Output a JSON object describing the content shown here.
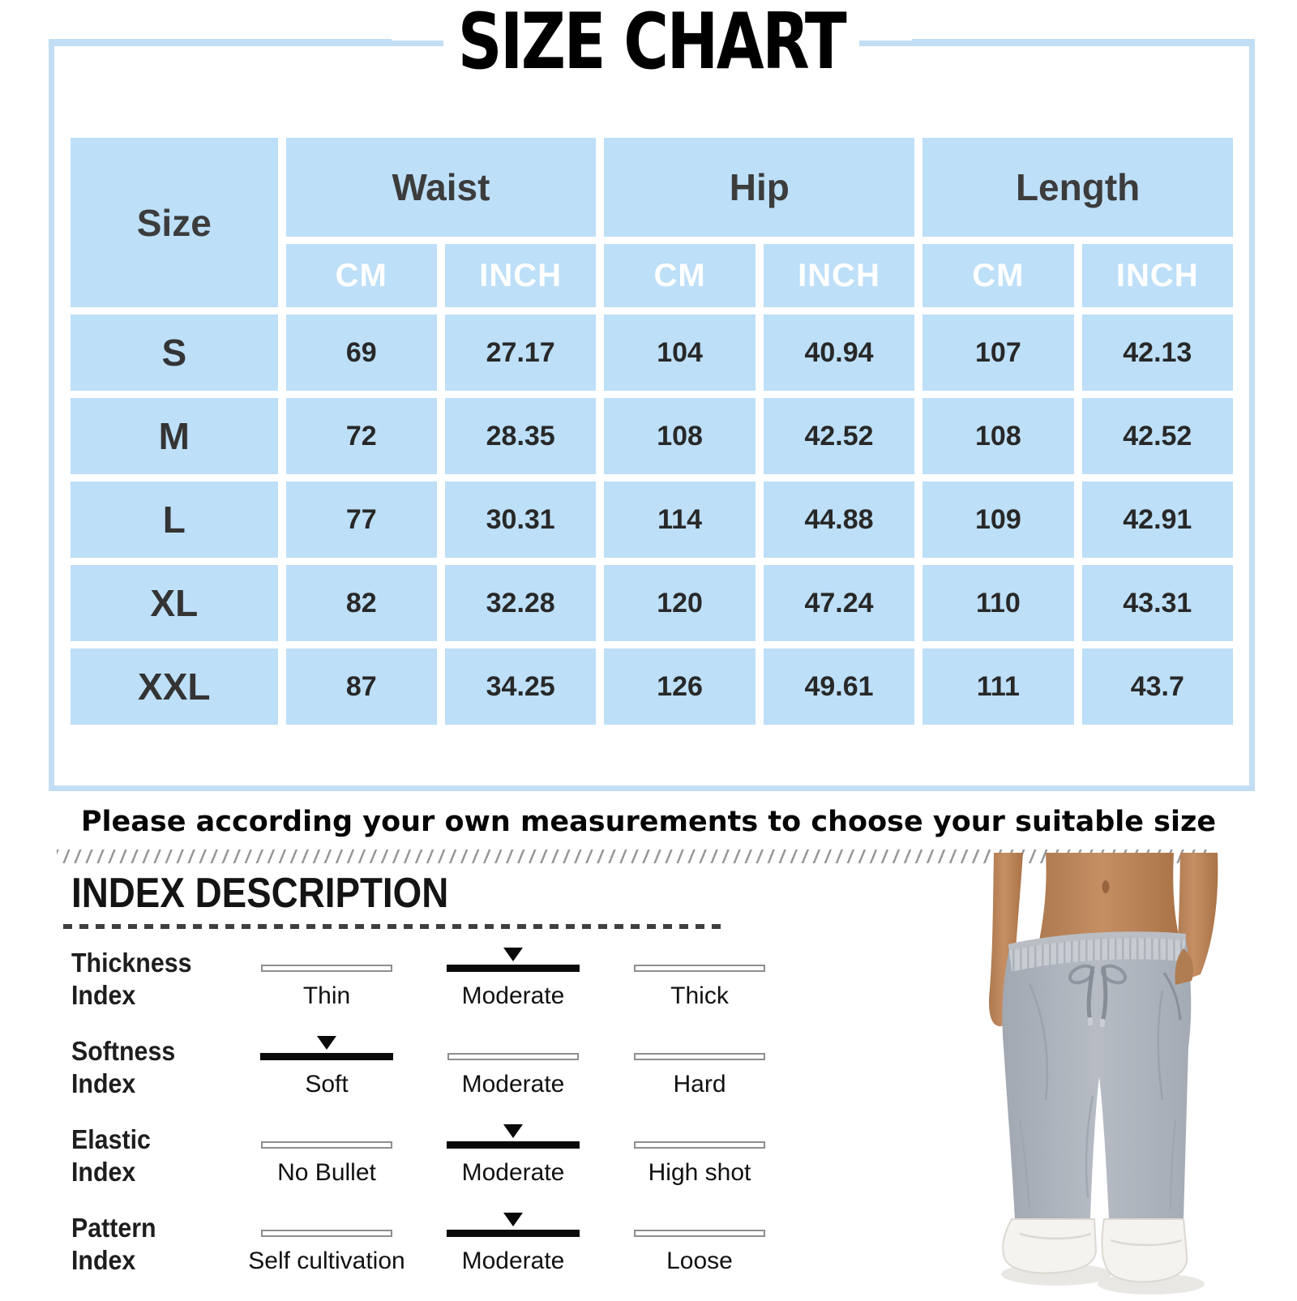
{
  "title": "SIZE CHART",
  "size_table": {
    "size_header": "Size",
    "groups": [
      "Waist",
      "Hip",
      "Length"
    ],
    "unit_headers": [
      "CM",
      "INCH",
      "CM",
      "INCH",
      "CM",
      "INCH"
    ],
    "rows": [
      {
        "size": "S",
        "values": [
          "69",
          "27.17",
          "104",
          "40.94",
          "107",
          "42.13"
        ]
      },
      {
        "size": "M",
        "values": [
          "72",
          "28.35",
          "108",
          "42.52",
          "108",
          "42.52"
        ]
      },
      {
        "size": "L",
        "values": [
          "77",
          "30.31",
          "114",
          "44.88",
          "109",
          "42.91"
        ]
      },
      {
        "size": "XL",
        "values": [
          "82",
          "32.28",
          "120",
          "47.24",
          "110",
          "43.31"
        ]
      },
      {
        "size": "XXL",
        "values": [
          "87",
          "34.25",
          "126",
          "49.61",
          "111",
          "43.7"
        ]
      }
    ]
  },
  "note": "Please according your own measurements to choose your suitable size",
  "index_section": {
    "heading": "INDEX DESCRIPTION",
    "rows": [
      {
        "label": "Thickness\nIndex",
        "options": [
          {
            "text": "Thin",
            "selected": false
          },
          {
            "text": "Moderate",
            "selected": true
          },
          {
            "text": "Thick",
            "selected": false
          }
        ]
      },
      {
        "label": "Softness\nIndex",
        "options": [
          {
            "text": "Soft",
            "selected": true
          },
          {
            "text": "Moderate",
            "selected": false
          },
          {
            "text": "Hard",
            "selected": false
          }
        ]
      },
      {
        "label": "Elastic\nIndex",
        "options": [
          {
            "text": "No Bullet",
            "selected": false
          },
          {
            "text": "Moderate",
            "selected": true
          },
          {
            "text": "High shot",
            "selected": false
          }
        ]
      },
      {
        "label": "Pattern\nIndex",
        "options": [
          {
            "text": "Self cultivation",
            "selected": false
          },
          {
            "text": "Moderate",
            "selected": true
          },
          {
            "text": "Loose",
            "selected": false
          }
        ]
      }
    ]
  },
  "colors": {
    "cell_blue": "#BDDFF8",
    "box_border_blue": "#C2DEF4",
    "header_text": "#3C3C3C",
    "unit_text": "#FFFFFF",
    "selected_bar": "#0A0A0A",
    "unselected_bar_border": "#8E8E8E",
    "pants_gray": "#ABB1BB",
    "waistband_gray": "#C7CBD2",
    "skin_tone": "#BE8760",
    "shoe_white": "#F5F3EF"
  },
  "model_image": {
    "description": "Model wearing gray drawstring sweatpants with white sneakers"
  }
}
